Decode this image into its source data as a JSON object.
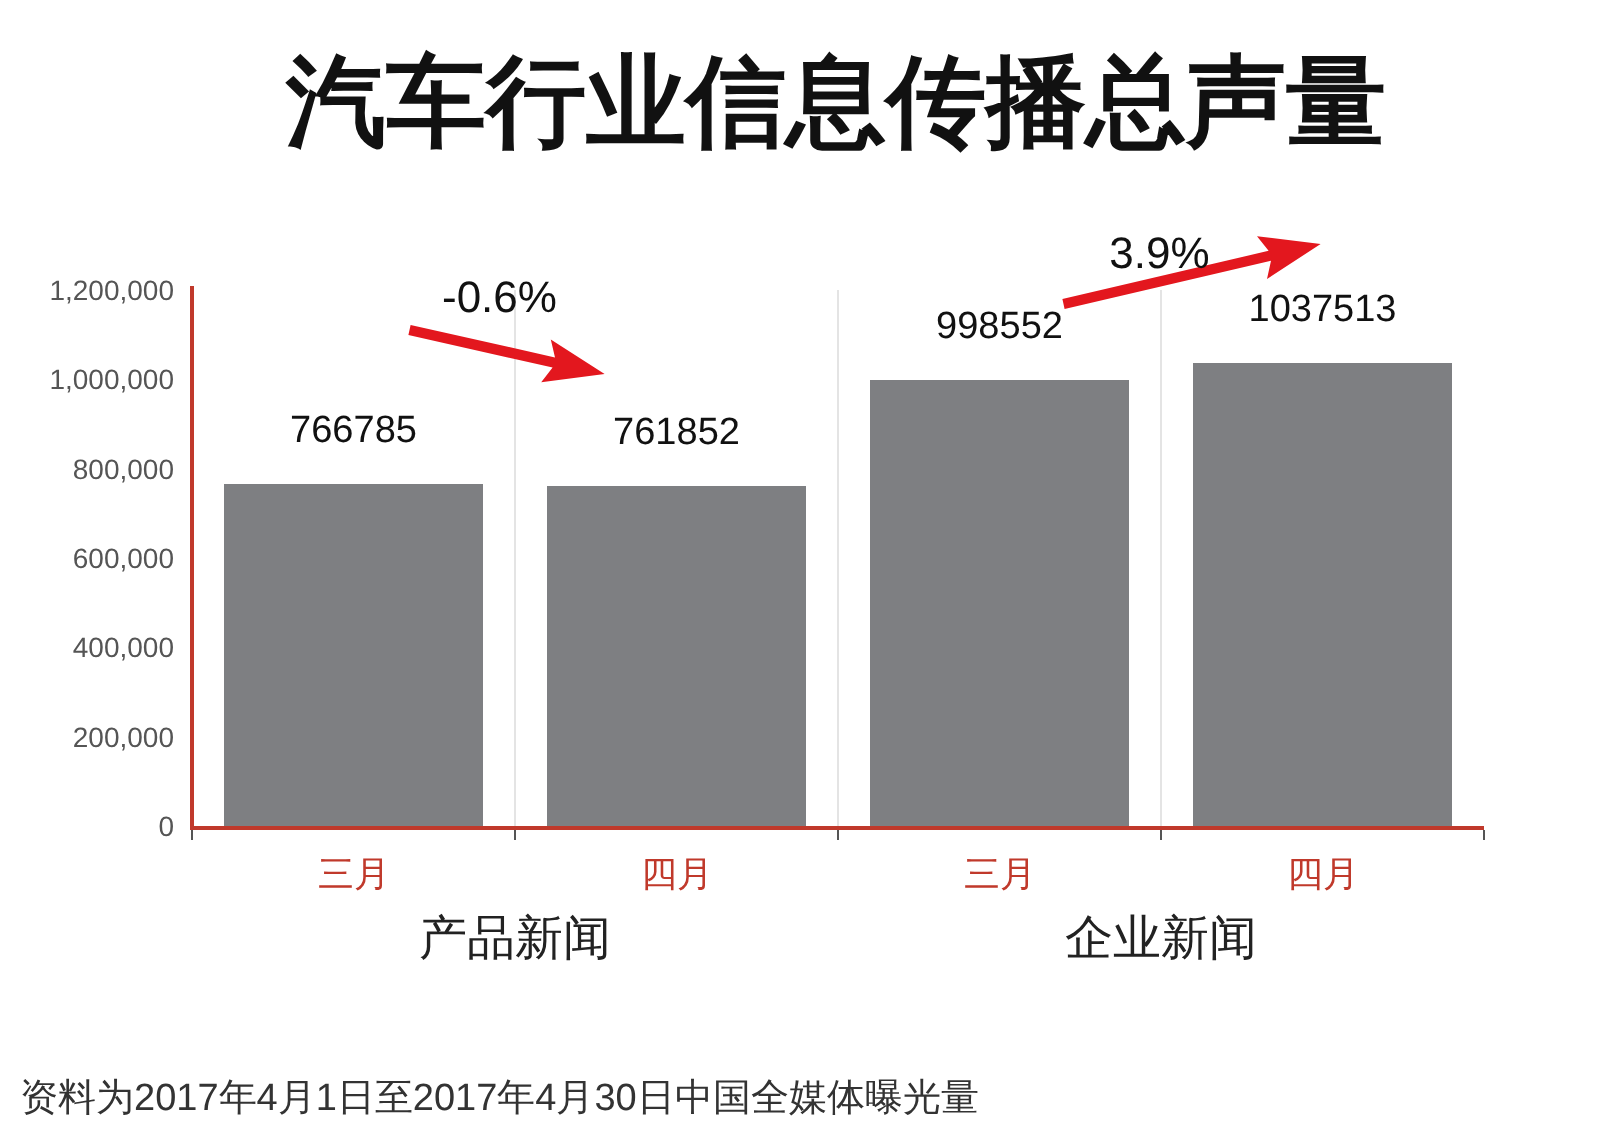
{
  "chart_data": {
    "type": "bar",
    "title": "汽车行业信息传播总声量",
    "categories": [
      "三月",
      "四月",
      "三月",
      "四月"
    ],
    "values": [
      766785,
      761852,
      998552,
      1037513
    ],
    "color": "#7e7f82",
    "ylim": [
      0,
      1200000
    ],
    "yticks": [
      0,
      {
        "value": 200000,
        "label": "200,000"
      },
      {
        "value": 400000,
        "label": "400,000"
      },
      {
        "value": 600000,
        "label": "600,000"
      },
      {
        "value": 800000,
        "label": "800,000"
      },
      {
        "value": 1000000,
        "label": "1,000,000"
      },
      {
        "value": 1200000,
        "label": "1,200,000"
      }
    ],
    "data_labels": true,
    "grid": "x",
    "annotations": [
      "-0.6%",
      "3.9%",
      "产品新闻",
      "企业新闻",
      "资料为2017年4月1日至2017年4月30日中国全媒体曝光量"
    ]
  }
}
